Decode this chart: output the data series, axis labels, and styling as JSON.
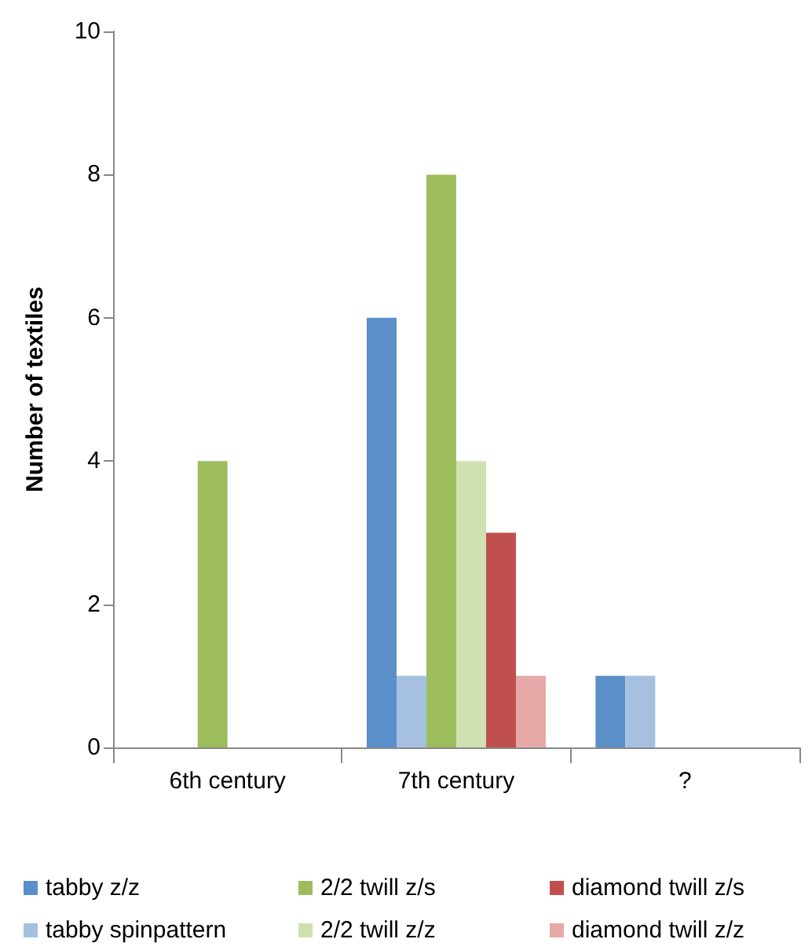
{
  "chart_data": {
    "type": "bar",
    "ylabel": "Number of textiles",
    "categories": [
      "6th century",
      "7th century",
      "?"
    ],
    "series": [
      {
        "name": "tabby z/z",
        "color": "#5b8fc9",
        "values": [
          0,
          6,
          1
        ]
      },
      {
        "name": "tabby spinpattern",
        "color": "#a5c0e0",
        "values": [
          0,
          1,
          1
        ]
      },
      {
        "name": "2/2 twill z/s",
        "color": "#9dbd5d",
        "values": [
          4,
          8,
          0
        ]
      },
      {
        "name": "2/2 twill z/z",
        "color": "#d0e0b0",
        "values": [
          0,
          4,
          0
        ]
      },
      {
        "name": "diamond twill z/s",
        "color": "#c0504d",
        "values": [
          0,
          3,
          0
        ]
      },
      {
        "name": "diamond twill z/z",
        "color": "#e6a9a8",
        "values": [
          0,
          1,
          0
        ]
      }
    ],
    "ylim": [
      0,
      10
    ],
    "yticks": [
      0,
      2,
      4,
      6,
      8,
      10
    ],
    "grid": false,
    "legend": "bottom"
  }
}
